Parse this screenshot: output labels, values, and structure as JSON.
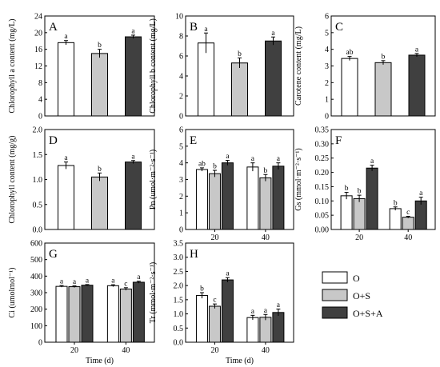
{
  "legend": [
    {
      "label": "O",
      "color": "#ffffff"
    },
    {
      "label": "O+S",
      "color": "#c8c8c8"
    },
    {
      "label": "O+S+A",
      "color": "#404040"
    }
  ],
  "chart_data": [
    {
      "panel": "A",
      "type": "bar",
      "ylabel": "Chlorophyll a content (mg/L)",
      "ylim": [
        0,
        24
      ],
      "yticks": [
        "0",
        "4",
        "8",
        "12",
        "16",
        "20",
        "24"
      ],
      "groups": [
        ""
      ],
      "xlabel": "",
      "series": [
        {
          "name": "O",
          "values": [
            17.6
          ],
          "errors": [
            0.5
          ],
          "letters": [
            "a"
          ]
        },
        {
          "name": "O+S",
          "values": [
            15.0
          ],
          "errors": [
            1.0
          ],
          "letters": [
            "b"
          ]
        },
        {
          "name": "O+S+A",
          "values": [
            19.0
          ],
          "errors": [
            0.4
          ],
          "letters": [
            "a"
          ]
        }
      ]
    },
    {
      "panel": "B",
      "type": "bar",
      "ylabel": "Chlorophyll b content (mg/L)",
      "ylim": [
        0,
        10
      ],
      "yticks": [
        "0",
        "2",
        "4",
        "6",
        "8",
        "10"
      ],
      "groups": [
        ""
      ],
      "xlabel": "",
      "series": [
        {
          "name": "O",
          "values": [
            7.3
          ],
          "errors": [
            1.0
          ],
          "letters": [
            "a"
          ]
        },
        {
          "name": "O+S",
          "values": [
            5.3
          ],
          "errors": [
            0.5
          ],
          "letters": [
            "b"
          ]
        },
        {
          "name": "O+S+A",
          "values": [
            7.5
          ],
          "errors": [
            0.4
          ],
          "letters": [
            "a"
          ]
        }
      ]
    },
    {
      "panel": "C",
      "type": "bar",
      "ylabel": "Carotene content (mg/L)",
      "ylim": [
        0,
        6
      ],
      "yticks": [
        "0",
        "1",
        "2",
        "3",
        "4",
        "5",
        "6"
      ],
      "groups": [
        ""
      ],
      "xlabel": "",
      "series": [
        {
          "name": "O",
          "values": [
            3.45
          ],
          "errors": [
            0.12
          ],
          "letters": [
            "ab"
          ]
        },
        {
          "name": "O+S",
          "values": [
            3.2
          ],
          "errors": [
            0.12
          ],
          "letters": [
            "b"
          ]
        },
        {
          "name": "O+S+A",
          "values": [
            3.65
          ],
          "errors": [
            0.1
          ],
          "letters": [
            "a"
          ]
        }
      ]
    },
    {
      "panel": "D",
      "type": "bar",
      "ylabel": "Chlorophyll content (mg/g)",
      "ylim": [
        0,
        2.0
      ],
      "yticks": [
        "0.0",
        "0.5",
        "1.0",
        "1.5",
        "2.0"
      ],
      "groups": [
        ""
      ],
      "xlabel": "",
      "series": [
        {
          "name": "O",
          "values": [
            1.28
          ],
          "errors": [
            0.07
          ],
          "letters": [
            "a"
          ]
        },
        {
          "name": "O+S",
          "values": [
            1.05
          ],
          "errors": [
            0.08
          ],
          "letters": [
            "b"
          ]
        },
        {
          "name": "O+S+A",
          "values": [
            1.35
          ],
          "errors": [
            0.03
          ],
          "letters": [
            "a"
          ]
        }
      ]
    },
    {
      "panel": "E",
      "type": "bar",
      "ylabel": "Pn (umol·m⁻²·s⁻¹)",
      "ylim": [
        0,
        6
      ],
      "yticks": [
        "0",
        "1",
        "2",
        "3",
        "4",
        "5",
        "6"
      ],
      "groups": [
        "20",
        "40"
      ],
      "xlabel": "",
      "series": [
        {
          "name": "O",
          "values": [
            3.6,
            3.75
          ],
          "errors": [
            0.1,
            0.25
          ],
          "letters": [
            "ab",
            "a"
          ]
        },
        {
          "name": "O+S",
          "values": [
            3.35,
            3.1
          ],
          "errors": [
            0.2,
            0.2
          ],
          "letters": [
            "b",
            "b"
          ]
        },
        {
          "name": "O+S+A",
          "values": [
            4.0,
            3.8
          ],
          "errors": [
            0.15,
            0.2
          ],
          "letters": [
            "a",
            "a"
          ]
        }
      ]
    },
    {
      "panel": "F",
      "type": "bar",
      "ylabel": "Gs (mmol·m⁻²·s⁻¹)",
      "ylim": [
        0,
        0.35
      ],
      "yticks": [
        "0.00",
        "0.05",
        "0.10",
        "0.15",
        "0.20",
        "0.25",
        "0.30",
        "0.35"
      ],
      "groups": [
        "20",
        "40"
      ],
      "xlabel": "",
      "series": [
        {
          "name": "O",
          "values": [
            0.118,
            0.073
          ],
          "errors": [
            0.012,
            0.006
          ],
          "letters": [
            "b",
            "b"
          ]
        },
        {
          "name": "O+S",
          "values": [
            0.108,
            0.043
          ],
          "errors": [
            0.012,
            0.003
          ],
          "letters": [
            "b",
            "c"
          ]
        },
        {
          "name": "O+S+A",
          "values": [
            0.215,
            0.1
          ],
          "errors": [
            0.01,
            0.013
          ],
          "letters": [
            "a",
            "a"
          ]
        }
      ]
    },
    {
      "panel": "G",
      "type": "bar",
      "ylabel": "Ci (umolmol⁻¹)",
      "ylim": [
        0,
        600
      ],
      "yticks": [
        "0",
        "100",
        "200",
        "300",
        "400",
        "500",
        "600"
      ],
      "groups": [
        "20",
        "40"
      ],
      "xlabel": "Time (d)",
      "series": [
        {
          "name": "O",
          "values": [
            338,
            342
          ],
          "errors": [
            5,
            6
          ],
          "letters": [
            "a",
            "a"
          ]
        },
        {
          "name": "O+S",
          "values": [
            336,
            322
          ],
          "errors": [
            5,
            8
          ],
          "letters": [
            "a",
            "c"
          ]
        },
        {
          "name": "O+S+A",
          "values": [
            345,
            363
          ],
          "errors": [
            4,
            6
          ],
          "letters": [
            "a",
            "a"
          ]
        }
      ]
    },
    {
      "panel": "H",
      "type": "bar",
      "ylabel": "Tr (mmol·m⁻²·s⁻¹)",
      "ylim": [
        0,
        3.5
      ],
      "yticks": [
        "0.0",
        "0.5",
        "1.0",
        "1.5",
        "2.0",
        "2.5",
        "3.0",
        "3.5"
      ],
      "groups": [
        "20",
        "40"
      ],
      "xlabel": "Time (d)",
      "series": [
        {
          "name": "O",
          "values": [
            1.65,
            0.87
          ],
          "errors": [
            0.1,
            0.08
          ],
          "letters": [
            "b",
            "a"
          ]
        },
        {
          "name": "O+S",
          "values": [
            1.27,
            0.88
          ],
          "errors": [
            0.08,
            0.1
          ],
          "letters": [
            "c",
            "a"
          ]
        },
        {
          "name": "O+S+A",
          "values": [
            2.2,
            1.05
          ],
          "errors": [
            0.08,
            0.12
          ],
          "letters": [
            "a",
            "a"
          ]
        }
      ]
    }
  ]
}
